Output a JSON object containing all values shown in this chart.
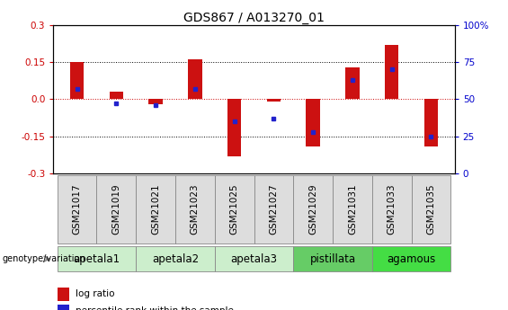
{
  "title": "GDS867 / A013270_01",
  "samples": [
    "GSM21017",
    "GSM21019",
    "GSM21021",
    "GSM21023",
    "GSM21025",
    "GSM21027",
    "GSM21029",
    "GSM21031",
    "GSM21033",
    "GSM21035"
  ],
  "log_ratio": [
    0.15,
    0.03,
    -0.02,
    0.16,
    -0.23,
    -0.01,
    -0.19,
    0.13,
    0.22,
    -0.19
  ],
  "percentile_rank": [
    57,
    47,
    46,
    57,
    35,
    37,
    28,
    63,
    70,
    25
  ],
  "ylim": [
    -0.3,
    0.3
  ],
  "yticks": [
    -0.3,
    -0.15,
    0.0,
    0.15,
    0.3
  ],
  "right_yticks": [
    0,
    25,
    50,
    75,
    100
  ],
  "groups": [
    {
      "label": "apetala1",
      "samples": [
        0,
        1
      ],
      "light_color": "#cceecc",
      "dark": false
    },
    {
      "label": "apetala2",
      "samples": [
        2,
        3
      ],
      "light_color": "#cceecc",
      "dark": false
    },
    {
      "label": "apetala3",
      "samples": [
        4,
        5
      ],
      "light_color": "#cceecc",
      "dark": false
    },
    {
      "label": "pistillata",
      "samples": [
        6,
        7
      ],
      "light_color": "#66cc66",
      "dark": true
    },
    {
      "label": "agamous",
      "samples": [
        8,
        9
      ],
      "light_color": "#44dd44",
      "dark": true
    }
  ],
  "bar_color": "#cc1111",
  "dot_color": "#2222cc",
  "bar_width": 0.35,
  "dot_size": 18,
  "zero_line_color": "#cc0000",
  "background_color": "#ffffff",
  "title_fontsize": 10,
  "tick_label_fontsize": 7.5,
  "legend_fontsize": 7.5,
  "group_label_fontsize": 8.5
}
